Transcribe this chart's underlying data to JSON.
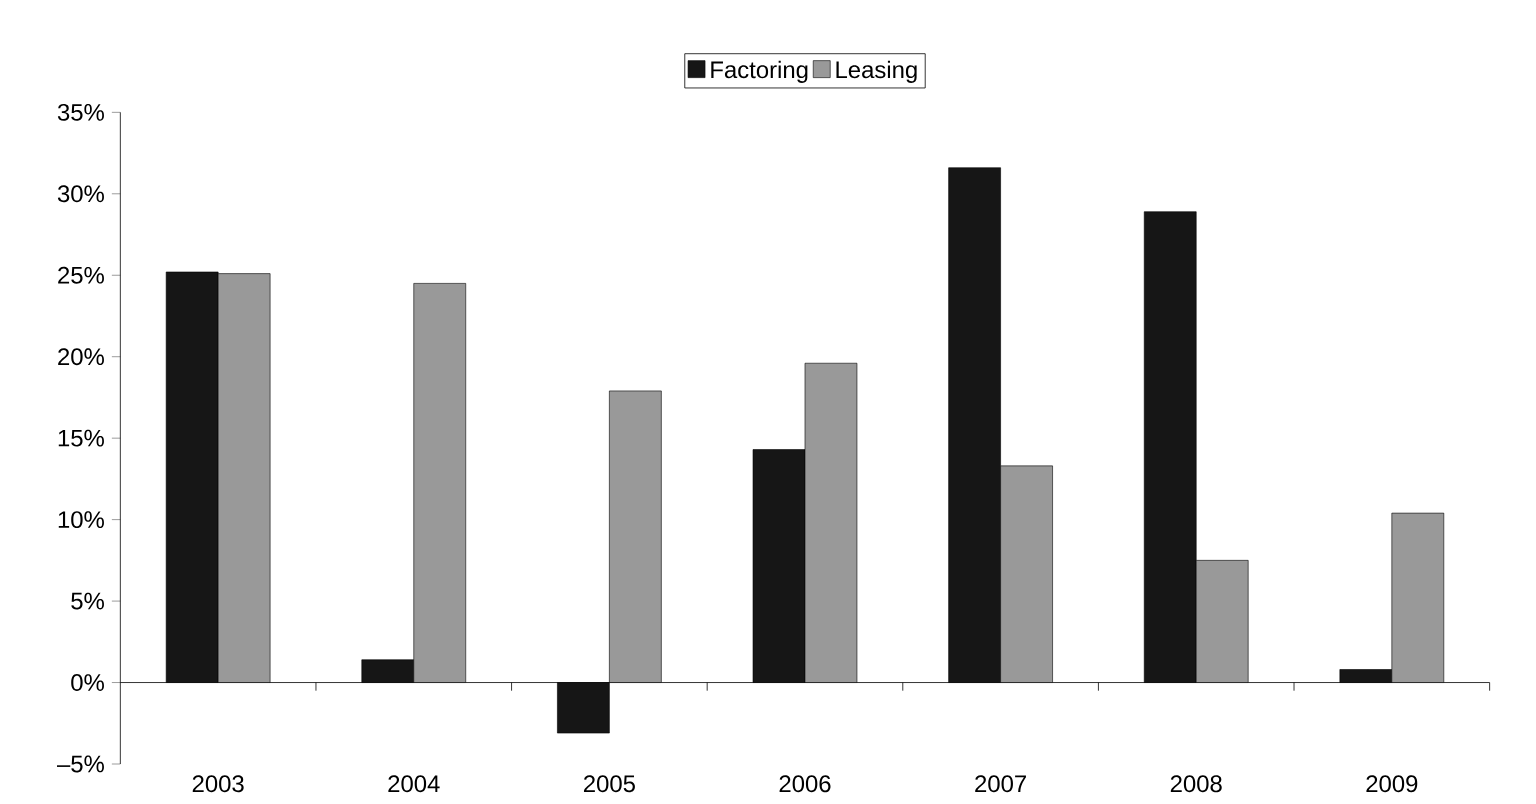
{
  "chart_data": {
    "type": "bar",
    "categories": [
      "2003",
      "2004",
      "2005",
      "2006",
      "2007",
      "2008",
      "2009"
    ],
    "series": [
      {
        "name": "Factoring",
        "color": "#161616",
        "values": [
          25.2,
          1.4,
          -3.1,
          14.3,
          31.6,
          28.9,
          0.8
        ]
      },
      {
        "name": "Leasing",
        "color": "#999999",
        "values": [
          25.1,
          24.5,
          17.9,
          19.6,
          13.3,
          7.5,
          10.4
        ]
      }
    ],
    "ylim": [
      -5,
      35
    ],
    "yticks": [
      {
        "value": -5,
        "label": "–5%"
      },
      {
        "value": 0,
        "label": "0%"
      },
      {
        "value": 5,
        "label": "5%"
      },
      {
        "value": 10,
        "label": "10%"
      },
      {
        "value": 15,
        "label": "15%"
      },
      {
        "value": 20,
        "label": "20%"
      },
      {
        "value": 25,
        "label": "25%"
      },
      {
        "value": 30,
        "label": "30%"
      },
      {
        "value": 35,
        "label": "35%"
      }
    ],
    "legend": "top"
  }
}
